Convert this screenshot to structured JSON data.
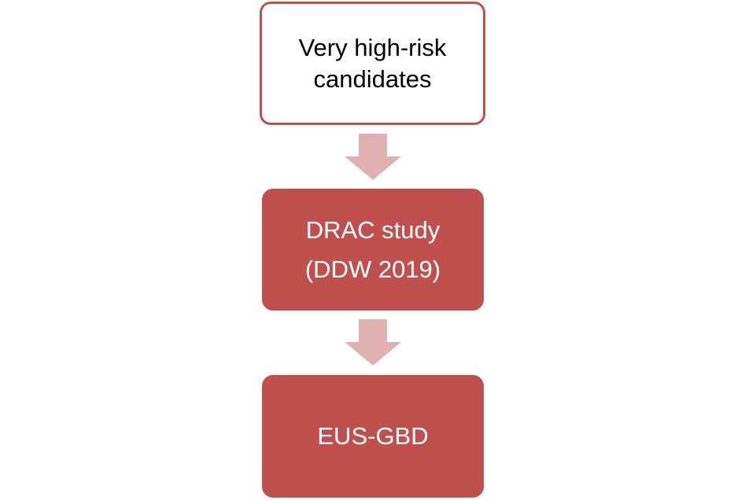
{
  "diagram": {
    "type": "vertical-flowchart",
    "colors": {
      "accent": "#c0504d",
      "arrow": "#dfb2b1",
      "top_box_fill": "#ffffff",
      "top_box_text": "#000000",
      "filled_box_text": "#ffffff"
    },
    "nodes": [
      {
        "id": "very-high-risk-candidates",
        "label": "Very high-risk\ncandidates"
      },
      {
        "id": "drac-study",
        "label": "DRAC study\n(DDW 2019)"
      },
      {
        "id": "eus-gbd",
        "label": "EUS-GBD"
      }
    ],
    "edges": [
      {
        "from": "very-high-risk-candidates",
        "to": "drac-study",
        "icon": "down-arrow-icon"
      },
      {
        "from": "drac-study",
        "to": "eus-gbd",
        "icon": "down-arrow-icon"
      }
    ]
  }
}
